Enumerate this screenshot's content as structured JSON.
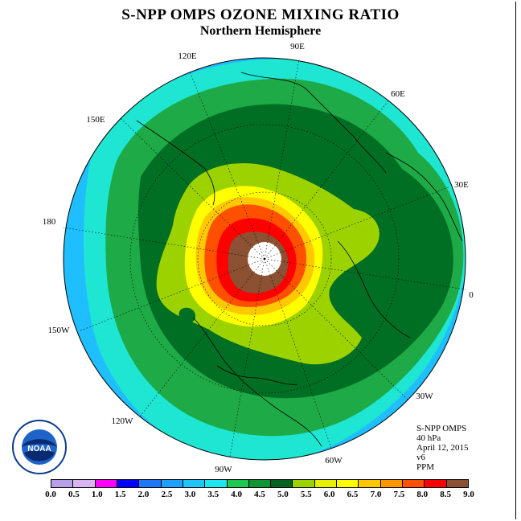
{
  "title": "S-NPP OMPS OZONE MIXING RATIO",
  "subtitle": "Northern Hemisphere",
  "longitude_labels": [
    "120E",
    "90E",
    "60E",
    "150E",
    "30E",
    "180",
    "0",
    "150W",
    "30W",
    "120W",
    "60W",
    "90W"
  ],
  "info": {
    "instrument": "S-NPP OMPS",
    "level": "40 hPa",
    "date": "April 12, 2015",
    "version": "v6",
    "units": "PPM"
  },
  "logo": {
    "name": "noaa-logo",
    "text": "NOAA"
  },
  "colorbar": {
    "ticks": [
      "0.0",
      "0.5",
      "1.0",
      "1.5",
      "2.0",
      "2.5",
      "3.0",
      "3.5",
      "4.0",
      "4.5",
      "5.0",
      "5.5",
      "6.0",
      "6.5",
      "7.0",
      "7.5",
      "8.0",
      "8.5",
      "9.0"
    ],
    "colors": [
      "#b8a0e8",
      "#d8b4f0",
      "#ff00ff",
      "#0000ff",
      "#1e78ff",
      "#1ea0ff",
      "#1ec8ff",
      "#1ee6f0",
      "#1ec850",
      "#0f9632",
      "#006420",
      "#9bd200",
      "#e6f000",
      "#ffff00",
      "#ffc800",
      "#ff9600",
      "#ff5000",
      "#ff0000",
      "#8c5032"
    ]
  }
}
